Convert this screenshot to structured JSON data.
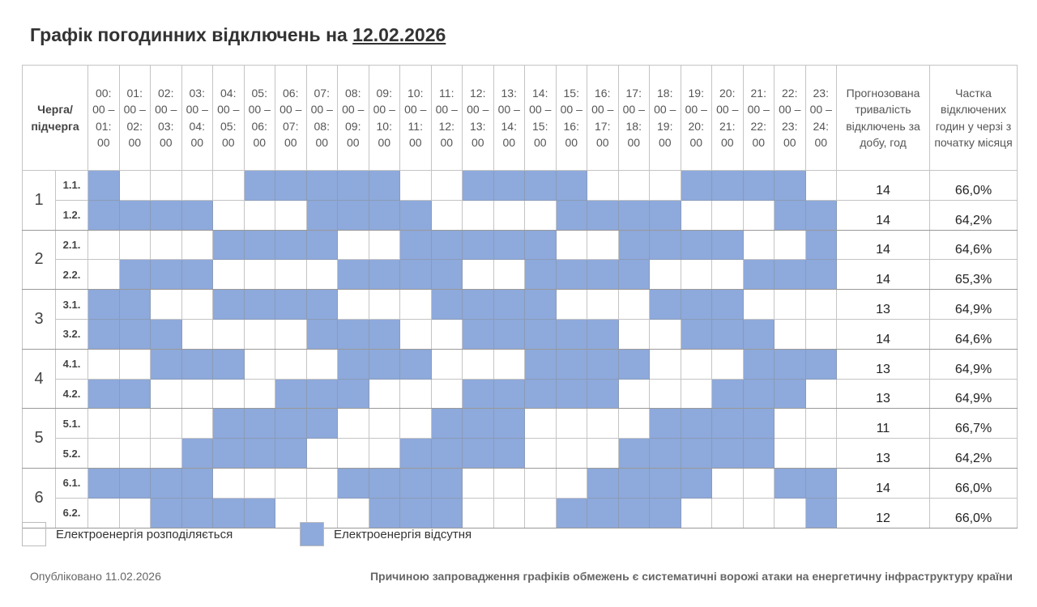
{
  "header": {
    "title": "Графік погодинних відключень на",
    "date": "12.02.2026"
  },
  "table": {
    "queue_header": "Черга/ підчерга",
    "hours": [
      "00: 00 – 01: 00",
      "01: 00 – 02: 00",
      "02: 00 – 03: 00",
      "03: 00 – 04: 00",
      "04: 00 – 05: 00",
      "05: 00 – 06: 00",
      "06: 00 – 07: 00",
      "07: 00 – 08: 00",
      "08: 00 – 09: 00",
      "09: 00 – 10: 00",
      "10: 00 – 11: 00",
      "11: 00 – 12: 00",
      "12: 00 – 13: 00",
      "13: 00 – 14: 00",
      "14: 00 – 15: 00",
      "15: 00 – 16: 00",
      "16: 00 – 17: 00",
      "17: 00 – 18: 00",
      "18: 00 – 19: 00",
      "19: 00 – 20: 00",
      "20: 00 – 21: 00",
      "21: 00 – 22: 00",
      "22: 00 – 23: 00",
      "23: 00 – 24: 00"
    ],
    "forecast_header": "Прогнозована тривалість відключень за добу, год",
    "share_header": "Частка відключених годин у черзі з початку місяця",
    "groups": [
      {
        "label": "1",
        "subs": [
          {
            "label": "1.1.",
            "schedule": "100001111100111100011110",
            "hours": "14",
            "share": "66,0%"
          },
          {
            "label": "1.2.",
            "schedule": "111100011110000111100011",
            "hours": "14",
            "share": "64,2%"
          }
        ]
      },
      {
        "label": "2",
        "subs": [
          {
            "label": "2.1.",
            "schedule": "000011110011111001111001",
            "hours": "14",
            "share": "64,6%"
          },
          {
            "label": "2.2.",
            "schedule": "011100001111001111000111",
            "hours": "14",
            "share": "65,3%"
          }
        ]
      },
      {
        "label": "3",
        "subs": [
          {
            "label": "3.1.",
            "schedule": "110011110001111000111000",
            "hours": "13",
            "share": "64,9%"
          },
          {
            "label": "3.2.",
            "schedule": "111000011100111110011100",
            "hours": "14",
            "share": "64,6%"
          }
        ]
      },
      {
        "label": "4",
        "subs": [
          {
            "label": "4.1.",
            "schedule": "001110001110001111000111",
            "hours": "13",
            "share": "64,9%"
          },
          {
            "label": "4.2.",
            "schedule": "110000111000111110001110",
            "hours": "13",
            "share": "64,9%"
          }
        ]
      },
      {
        "label": "5",
        "subs": [
          {
            "label": "5.1.",
            "schedule": "000011110001110000111100",
            "hours": "11",
            "share": "66,7%"
          },
          {
            "label": "5.2.",
            "schedule": "000111100011110001111100",
            "hours": "13",
            "share": "64,2%"
          }
        ]
      },
      {
        "label": "6",
        "subs": [
          {
            "label": "6.1.",
            "schedule": "111100001111000011110011",
            "hours": "14",
            "share": "66,0%"
          },
          {
            "label": "6.2.",
            "schedule": "001111000111000111100001",
            "hours": "12",
            "share": "66,0%"
          }
        ]
      }
    ]
  },
  "legend": {
    "power_on": "Електроенергія розподіляється",
    "power_off": "Електроенергія відсутня",
    "colors": {
      "on": "#FFFFFF",
      "off": "#8EA9DB"
    }
  },
  "footer": {
    "published": "Опубліковано 11.02.2026",
    "note": "Причиною запровадження графіків обмежень є систематичні ворожі атаки на енергетичну інфраструктуру країни"
  }
}
